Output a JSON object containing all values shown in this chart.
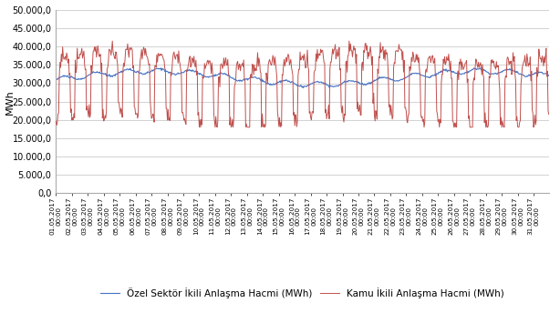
{
  "ylabel": "MWh",
  "ylim": [
    0,
    50000
  ],
  "yticks": [
    0,
    5000,
    10000,
    15000,
    20000,
    25000,
    30000,
    35000,
    40000,
    45000,
    50000
  ],
  "ytick_labels": [
    "0,0",
    "5.000,0",
    "10.000,0",
    "15.000,0",
    "20.000,0",
    "25.000,0",
    "30.000,0",
    "35.000,0",
    "40.000,0",
    "45.000,0",
    "50.000,0"
  ],
  "x_dates": [
    "01.05.2017\n00:00",
    "02.05.2017\n00:00",
    "03.05.2017\n00:00",
    "04.05.2017\n00:00",
    "05.05.2017\n00:00",
    "06.05.2017\n00:00",
    "07.05.2017\n00:00",
    "08.05.2017\n00:00",
    "09.05.2017\n00:00",
    "10.05.2017\n00:00",
    "11.05.2017\n00:00",
    "12.05.2017\n00:00",
    "13.05.2017\n00:00",
    "14.05.2017\n00:00",
    "15.05.2017\n00:00",
    "16.05.2017\n00:00",
    "17.05.2017\n00:00",
    "18.05.2017\n00:00",
    "19.05.2017\n00:00",
    "20.05.2017\n00:00",
    "21.05.2017\n00:00",
    "22.05.2017\n00:00",
    "23.05.2017\n00:00",
    "24.05.2017\n00:00",
    "25.05.2017\n00:00",
    "26.05.2017\n00:00",
    "27.05.2017\n00:00",
    "28.05.2017\n00:00",
    "29.05.2017\n00:00",
    "30.05.2017\n00:00",
    "31.05.2017\n00:00"
  ],
  "private_color": "#4472C4",
  "public_color": "#C0504D",
  "legend_private": "Özel Sektör İkili Anlaşma Hacmi (MWh)",
  "legend_public": "Kamu İkili Anlaşma Hacmi (MWh)",
  "background_color": "#ffffff",
  "grid_color": "#C0C0C0",
  "legend_fontsize": 7.5,
  "axis_fontsize": 7,
  "ylabel_fontsize": 8
}
